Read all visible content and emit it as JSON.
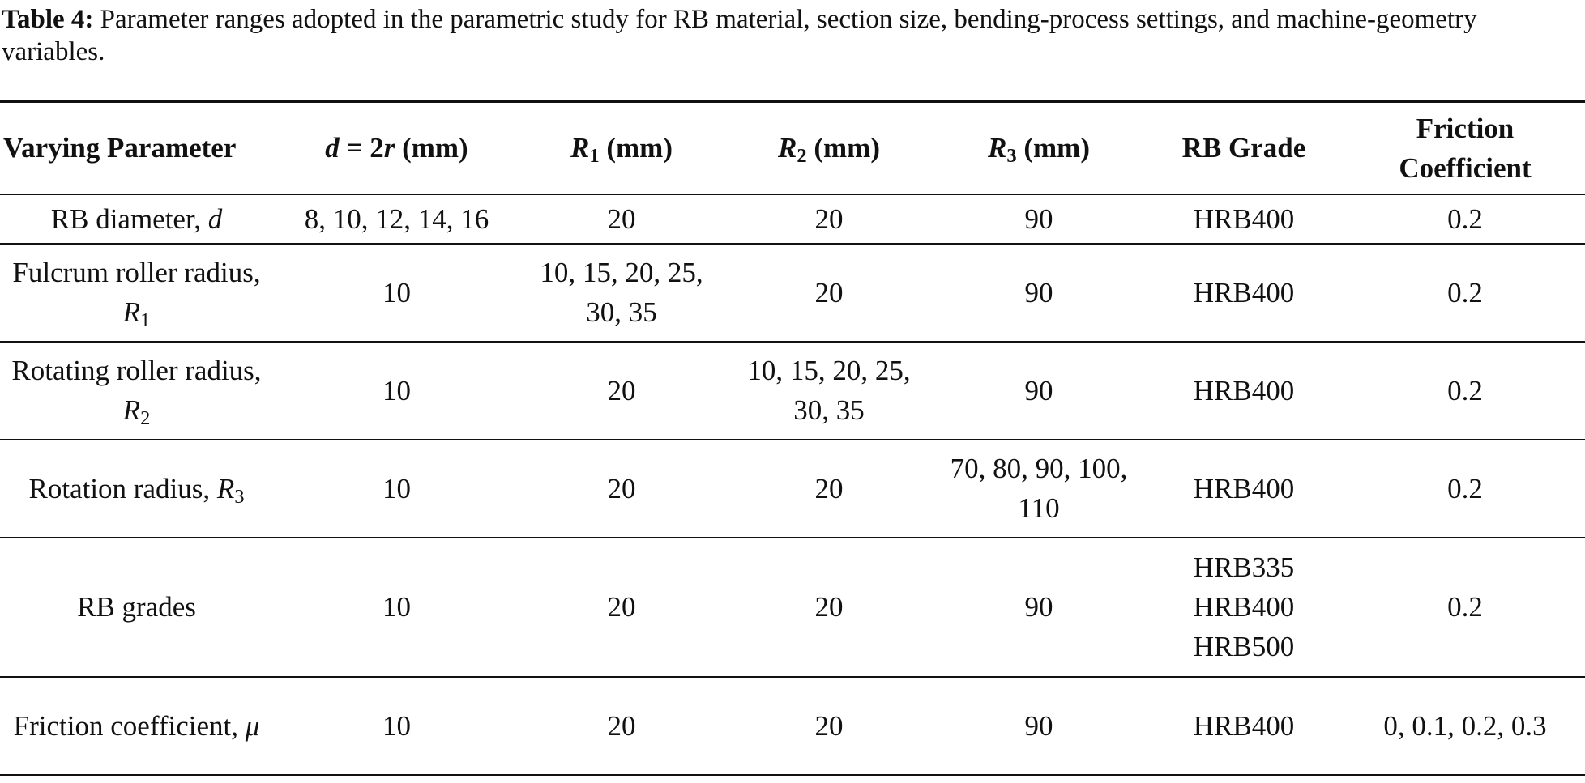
{
  "caption": {
    "label": "Table 4:",
    "text": "Parameter ranges adopted in the parametric study for RB material, section size, bending-process settings, and machine-geometry variables."
  },
  "table": {
    "header": [
      [
        {
          "text": "Varying Parameter"
        }
      ],
      [
        {
          "text": "d",
          "style": "italic"
        },
        {
          "text": " = 2"
        },
        {
          "text": "r",
          "style": "italic"
        },
        {
          "text": " (mm)"
        }
      ],
      [
        {
          "text": "R",
          "style": "italic"
        },
        {
          "text": "1",
          "style": "sub"
        },
        {
          "text": " (mm)"
        }
      ],
      [
        {
          "text": "R",
          "style": "italic"
        },
        {
          "text": "2",
          "style": "sub"
        },
        {
          "text": " (mm)"
        }
      ],
      [
        {
          "text": "R",
          "style": "italic"
        },
        {
          "text": "3",
          "style": "sub"
        },
        {
          "text": " (mm)"
        }
      ],
      [
        {
          "text": "RB Grade"
        }
      ],
      [
        {
          "text": "Friction Coefficient"
        }
      ]
    ],
    "rows": [
      [
        [
          {
            "text": "RB diameter, "
          },
          {
            "text": "d",
            "style": "italic"
          }
        ],
        "8, 10, 12, 14, 16",
        "20",
        "20",
        "90",
        "HRB400",
        "0.2"
      ],
      [
        [
          {
            "text": "Fulcrum roller radius, "
          },
          {
            "text": "R",
            "style": "italic"
          },
          {
            "text": "1",
            "style": "sub"
          }
        ],
        "10",
        "10, 15, 20, 25, 30, 35",
        "20",
        "90",
        "HRB400",
        "0.2"
      ],
      [
        [
          {
            "text": "Rotating roller radius, "
          },
          {
            "text": "R",
            "style": "italic"
          },
          {
            "text": "2",
            "style": "sub"
          }
        ],
        "10",
        "20",
        "10, 15, 20, 25, 30, 35",
        "90",
        "HRB400",
        "0.2"
      ],
      [
        [
          {
            "text": "Rotation radius, "
          },
          {
            "text": "R",
            "style": "italic"
          },
          {
            "text": "3",
            "style": "sub"
          }
        ],
        "10",
        "20",
        "20",
        "70, 80, 90, 100, 110",
        "HRB400",
        "0.2"
      ],
      [
        [
          {
            "text": "RB grades"
          }
        ],
        "10",
        "20",
        "20",
        "90",
        "HRB335\nHRB400\nHRB500",
        "0.2"
      ],
      [
        [
          {
            "text": "Friction coefficient, "
          },
          {
            "text": "μ",
            "style": "italic"
          }
        ],
        "10",
        "20",
        "20",
        "90",
        "HRB400",
        "0, 0.1, 0.2, 0.3"
      ]
    ]
  }
}
